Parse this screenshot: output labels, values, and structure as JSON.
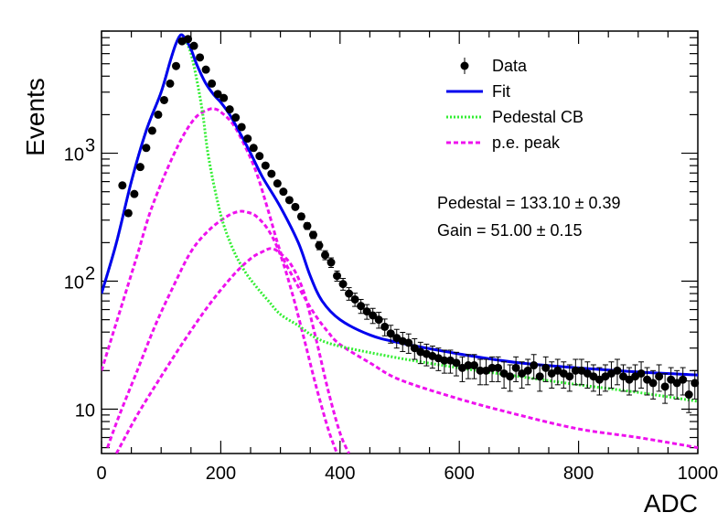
{
  "chart_data": {
    "type": "scatter",
    "title": "",
    "xlabel": "ADC",
    "ylabel": "Events",
    "xlim": [
      0,
      1000
    ],
    "ylim": [
      4.5,
      9000
    ],
    "yscale": "log",
    "x_ticks": [
      0,
      200,
      400,
      600,
      800,
      1000
    ],
    "y_ticks": [
      {
        "value": 10,
        "label": "10"
      },
      {
        "value": 100,
        "label": "10",
        "sup": "2"
      },
      {
        "value": 1000,
        "label": "10",
        "sup": "3"
      }
    ],
    "legend": {
      "placement": "top-right",
      "entries": [
        {
          "label": "Data",
          "style": "marker",
          "color": "#000000"
        },
        {
          "label": "Fit",
          "style": "solid",
          "color": "#0000ee"
        },
        {
          "label": "Pedestal CB",
          "style": "dotted",
          "color": "#33ee33"
        },
        {
          "label": "p.e. peak",
          "style": "dashed",
          "color": "#ee11ee"
        }
      ]
    },
    "annotations": [
      {
        "text": "Pedestal = 133.10",
        "pm": "±",
        "value": "0.39"
      },
      {
        "text": "Gain = 51.00",
        "pm": "±",
        "value": "0.15"
      }
    ],
    "series": [
      {
        "name": "Data",
        "kind": "points_with_errors",
        "color": "#000000",
        "x": [
          35,
          45,
          55,
          65,
          75,
          85,
          95,
          105,
          115,
          125,
          135,
          145,
          155,
          165,
          175,
          185,
          195,
          205,
          215,
          225,
          235,
          245,
          255,
          265,
          275,
          285,
          295,
          305,
          315,
          325,
          335,
          345,
          355,
          365,
          375,
          385,
          395,
          405,
          415,
          425,
          435,
          445,
          455,
          465,
          475,
          485,
          495,
          505,
          515,
          525,
          535,
          545,
          555,
          565,
          575,
          585,
          595,
          605,
          615,
          625,
          635,
          645,
          655,
          665,
          675,
          685,
          695,
          705,
          715,
          725,
          735,
          745,
          755,
          765,
          775,
          785,
          795,
          805,
          815,
          825,
          835,
          845,
          855,
          865,
          875,
          885,
          895,
          905,
          915,
          925,
          935,
          945,
          955,
          965,
          975,
          985,
          995
        ],
        "y": [
          560,
          340,
          480,
          780,
          1100,
          1500,
          2000,
          2600,
          3500,
          4800,
          7500,
          7800,
          6900,
          5600,
          4500,
          3500,
          2900,
          2700,
          2200,
          1900,
          1600,
          1300,
          1100,
          950,
          800,
          690,
          580,
          500,
          430,
          380,
          320,
          270,
          230,
          190,
          160,
          140,
          110,
          95,
          80,
          72,
          64,
          58,
          54,
          50,
          44,
          39,
          36,
          34,
          33,
          30,
          28,
          27,
          26,
          25,
          24,
          24,
          23,
          21,
          22,
          22,
          20,
          20,
          21,
          21,
          19,
          18,
          21,
          19,
          20,
          22,
          18,
          21,
          19,
          20,
          19,
          18,
          20,
          20,
          19,
          18,
          17,
          18,
          19,
          20,
          18,
          17,
          18,
          19,
          17,
          16,
          18,
          15,
          17,
          16,
          17,
          13,
          16
        ],
        "err": [
          24,
          18,
          22,
          28,
          33,
          39,
          45,
          51,
          59,
          69,
          87,
          88,
          83,
          75,
          67,
          59,
          54,
          52,
          47,
          44,
          40,
          36,
          33,
          31,
          28,
          26,
          24,
          22,
          21,
          19,
          18,
          16,
          15,
          14,
          13,
          12,
          10,
          10,
          9,
          8.5,
          8,
          7.6,
          7.3,
          7.1,
          6.6,
          6.2,
          6,
          5.8,
          5.7,
          5.5,
          5.3,
          5.2,
          5.1,
          5,
          4.9,
          4.9,
          4.8,
          4.6,
          4.7,
          4.7,
          4.5,
          4.5,
          4.6,
          4.6,
          4.4,
          4.2,
          4.6,
          4.4,
          4.5,
          4.7,
          4.2,
          4.6,
          4.4,
          4.5,
          4.4,
          4.2,
          4.5,
          4.5,
          4.4,
          4.2,
          4.1,
          4.2,
          4.4,
          4.5,
          4.2,
          4.1,
          4.2,
          4.4,
          4.1,
          4,
          4.2,
          3.9,
          4.1,
          4,
          4.1,
          3.6,
          4
        ]
      },
      {
        "name": "Fit",
        "kind": "line",
        "color": "#0000ee",
        "x": [
          0,
          25,
          50,
          75,
          100,
          115,
          125,
          133,
          140,
          150,
          160,
          175,
          190,
          200,
          215,
          230,
          250,
          270,
          300,
          330,
          350,
          370,
          400,
          450,
          500,
          600,
          700,
          800,
          900,
          1000
        ],
        "y": [
          80,
          200,
          600,
          1500,
          3000,
          5200,
          7200,
          8400,
          7900,
          6500,
          4900,
          3500,
          2800,
          2500,
          2000,
          1500,
          1000,
          650,
          380,
          200,
          110,
          70,
          50,
          38,
          33,
          27,
          23,
          21,
          19.5,
          18.5
        ]
      },
      {
        "name": "Pedestal CB",
        "kind": "line",
        "color": "#33ee33",
        "x": [
          0,
          25,
          50,
          75,
          100,
          115,
          125,
          133,
          140,
          150,
          160,
          170,
          180,
          200,
          220,
          240,
          260,
          280,
          300,
          330,
          360,
          400,
          500,
          600,
          700,
          800,
          900,
          1000
        ],
        "y": [
          80,
          200,
          600,
          1500,
          3000,
          5200,
          7200,
          8400,
          7800,
          6000,
          3700,
          2000,
          900,
          330,
          180,
          120,
          90,
          70,
          55,
          45,
          36,
          31,
          25,
          21,
          18,
          15.5,
          13.5,
          11.5
        ]
      },
      {
        "name": "p.e. peak 1",
        "kind": "line",
        "color": "#ee11ee",
        "x": [
          0,
          20,
          40,
          60,
          80,
          100,
          120,
          140,
          160,
          180,
          190,
          200,
          220,
          240,
          260,
          280,
          300,
          320,
          340,
          360,
          380,
          400,
          450,
          500,
          600,
          700,
          800,
          900,
          1000
        ],
        "y": [
          20,
          40,
          80,
          160,
          330,
          580,
          950,
          1450,
          1950,
          2200,
          2220,
          2100,
          1700,
          1150,
          700,
          350,
          170,
          110,
          75,
          53,
          40,
          32,
          23,
          17,
          12,
          9,
          7,
          6,
          5
        ]
      },
      {
        "name": "p.e. peak 2",
        "kind": "line",
        "color": "#ee11ee",
        "x": [
          10,
          30,
          60,
          90,
          120,
          150,
          180,
          210,
          230,
          245,
          260,
          280,
          300,
          320,
          340,
          360,
          380,
          395
        ],
        "y": [
          5,
          9,
          20,
          45,
          90,
          170,
          250,
          320,
          350,
          345,
          320,
          250,
          160,
          80,
          35,
          15,
          7,
          4.5
        ]
      },
      {
        "name": "p.e. peak 3",
        "kind": "line",
        "color": "#ee11ee",
        "x": [
          25,
          60,
          100,
          140,
          180,
          220,
          250,
          270,
          285,
          300,
          320,
          340,
          360,
          380,
          400,
          415
        ],
        "y": [
          4.5,
          9,
          18,
          35,
          65,
          110,
          150,
          170,
          180,
          165,
          130,
          80,
          35,
          14,
          6.5,
          4.5
        ]
      }
    ]
  }
}
